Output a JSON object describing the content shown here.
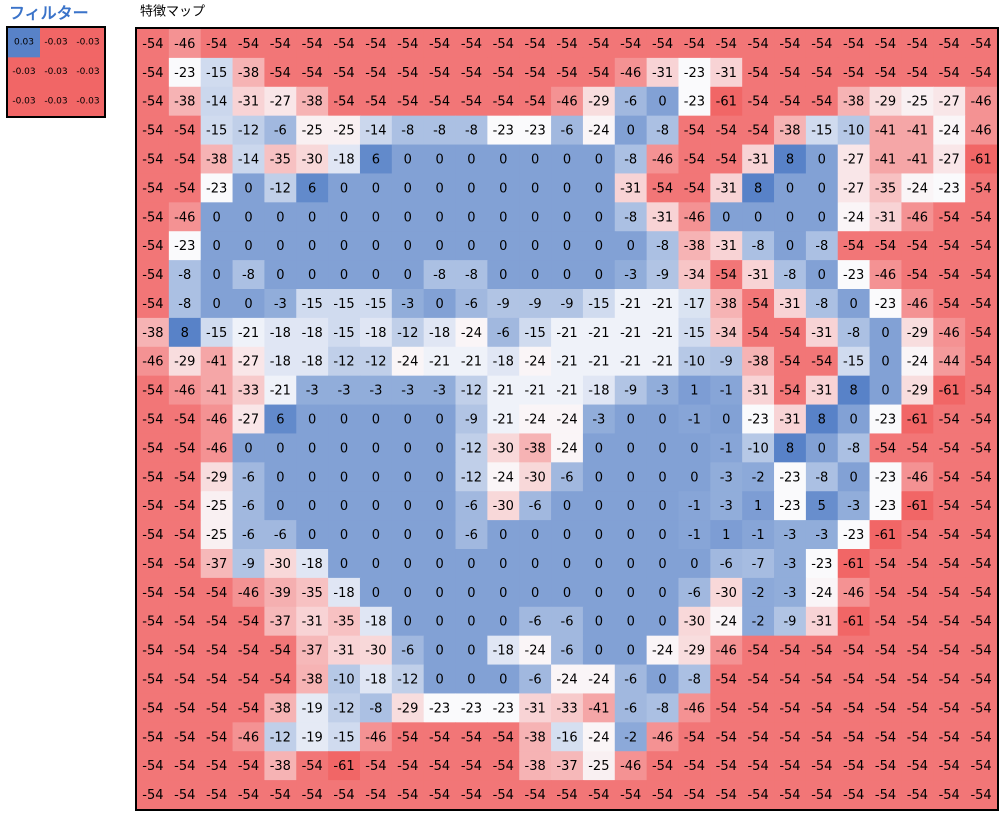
{
  "filter": {
    "title": "フィルター",
    "rows": [
      [
        0.03,
        -0.03,
        -0.03
      ],
      [
        -0.03,
        -0.03,
        -0.03
      ],
      [
        -0.03,
        -0.03,
        -0.03
      ]
    ]
  },
  "feature_map": {
    "title": "特徴マップ",
    "rows": [
      [
        -54,
        -46,
        -54,
        -54,
        -54,
        -54,
        -54,
        -54,
        -54,
        -54,
        -54,
        -54,
        -54,
        -54,
        -54,
        -54,
        -54,
        -54,
        -54,
        -54,
        -54,
        -54,
        -54,
        -54,
        -54,
        -54,
        -54
      ],
      [
        -54,
        -23,
        -15,
        -38,
        -54,
        -54,
        -54,
        -54,
        -54,
        -54,
        -54,
        -54,
        -54,
        -54,
        -54,
        -46,
        -31,
        -23,
        -31,
        -54,
        -54,
        -54,
        -54,
        -54,
        -54,
        -54,
        -54
      ],
      [
        -54,
        -38,
        -14,
        -31,
        -27,
        -38,
        -54,
        -54,
        -54,
        -54,
        -54,
        -54,
        -54,
        -46,
        -29,
        -6,
        0,
        -23,
        -61,
        -54,
        -54,
        -54,
        -38,
        -29,
        -25,
        -27,
        -46
      ],
      [
        -54,
        -54,
        -15,
        -12,
        -6,
        -25,
        -25,
        -14,
        -8,
        -8,
        -8,
        -23,
        -23,
        -6,
        -24,
        0,
        -8,
        -54,
        -54,
        -54,
        -38,
        -15,
        -10,
        -41,
        -41,
        -24,
        -46
      ],
      [
        -54,
        -54,
        -38,
        -14,
        -35,
        -30,
        -18,
        6,
        0,
        0,
        0,
        0,
        0,
        0,
        0,
        -8,
        -46,
        -54,
        -54,
        -31,
        8,
        0,
        -27,
        -41,
        -41,
        -27,
        -61
      ],
      [
        -54,
        -54,
        -23,
        0,
        -12,
        6,
        0,
        0,
        0,
        0,
        0,
        0,
        0,
        0,
        0,
        -31,
        -54,
        -54,
        -31,
        8,
        0,
        0,
        -27,
        -35,
        -24,
        -23,
        -54
      ],
      [
        -54,
        -46,
        0,
        0,
        0,
        0,
        0,
        0,
        0,
        0,
        0,
        0,
        0,
        0,
        0,
        -8,
        -31,
        -46,
        0,
        0,
        0,
        0,
        -24,
        -31,
        -46,
        -54,
        -54
      ],
      [
        -54,
        -23,
        0,
        0,
        0,
        0,
        0,
        0,
        0,
        0,
        0,
        0,
        0,
        0,
        0,
        0,
        -8,
        -38,
        -31,
        -8,
        0,
        -8,
        -54,
        -54,
        -54,
        -54,
        -54
      ],
      [
        -54,
        -8,
        0,
        -8,
        0,
        0,
        0,
        0,
        0,
        -8,
        -8,
        0,
        0,
        0,
        0,
        -3,
        -9,
        -34,
        -54,
        -31,
        -8,
        0,
        -23,
        -46,
        -54,
        -54,
        -54
      ],
      [
        -54,
        -8,
        0,
        0,
        -3,
        -15,
        -15,
        -15,
        -3,
        0,
        -6,
        -9,
        -9,
        -9,
        -15,
        -21,
        -21,
        -17,
        -38,
        -54,
        -31,
        -8,
        0,
        -23,
        -46,
        -54,
        -54
      ],
      [
        -38,
        8,
        -15,
        -21,
        -18,
        -18,
        -15,
        -18,
        -12,
        -18,
        -24,
        -6,
        -15,
        -21,
        -21,
        -21,
        -21,
        -15,
        -34,
        -54,
        -54,
        -31,
        -8,
        0,
        -29,
        -46,
        -54
      ],
      [
        -46,
        -29,
        -41,
        -27,
        -18,
        -18,
        -12,
        -12,
        -24,
        -21,
        -21,
        -18,
        -24,
        -21,
        -21,
        -21,
        -21,
        -10,
        -9,
        -38,
        -54,
        -54,
        -15,
        0,
        -24,
        -44,
        -54
      ],
      [
        -54,
        -46,
        -41,
        -33,
        -21,
        -3,
        -3,
        -3,
        -3,
        -3,
        -12,
        -21,
        -21,
        -21,
        -18,
        -9,
        -3,
        1,
        -1,
        -31,
        -54,
        -31,
        8,
        0,
        -29,
        -61,
        -54
      ],
      [
        -54,
        -54,
        -46,
        -27,
        6,
        0,
        0,
        0,
        0,
        0,
        -9,
        -21,
        -24,
        -24,
        -3,
        0,
        0,
        -1,
        0,
        -23,
        -31,
        8,
        0,
        -23,
        -61,
        -54,
        -54
      ],
      [
        -54,
        -54,
        -46,
        0,
        0,
        0,
        0,
        0,
        0,
        0,
        -12,
        -30,
        -38,
        -24,
        0,
        0,
        0,
        0,
        -1,
        -10,
        8,
        0,
        -8,
        -54,
        -54,
        -54,
        -54
      ],
      [
        -54,
        -54,
        -29,
        -6,
        0,
        0,
        0,
        0,
        0,
        0,
        -12,
        -24,
        -30,
        -6,
        0,
        0,
        0,
        0,
        -3,
        -2,
        -23,
        -8,
        0,
        -23,
        -46,
        -54,
        -54
      ],
      [
        -54,
        -54,
        -25,
        -6,
        0,
        0,
        0,
        0,
        0,
        0,
        -6,
        -30,
        -6,
        0,
        0,
        0,
        0,
        -1,
        -3,
        1,
        -23,
        5,
        -3,
        -23,
        -61,
        -54,
        -54
      ],
      [
        -54,
        -54,
        -25,
        -6,
        -6,
        0,
        0,
        0,
        0,
        0,
        -6,
        0,
        0,
        0,
        0,
        0,
        0,
        -1,
        1,
        -1,
        -3,
        -3,
        -23,
        -61,
        -54,
        -54,
        -54
      ],
      [
        -54,
        -54,
        -37,
        -9,
        -30,
        -18,
        0,
        0,
        0,
        0,
        0,
        0,
        0,
        0,
        0,
        0,
        0,
        0,
        -6,
        -7,
        -3,
        -23,
        -61,
        -54,
        -54,
        -54,
        -54
      ],
      [
        -54,
        -54,
        -54,
        -46,
        -39,
        -35,
        -18,
        0,
        0,
        0,
        0,
        0,
        0,
        0,
        0,
        0,
        0,
        -6,
        -30,
        -2,
        -3,
        -24,
        -46,
        -54,
        -54,
        -54,
        -54
      ],
      [
        -54,
        -54,
        -54,
        -54,
        -37,
        -31,
        -35,
        -18,
        0,
        0,
        0,
        0,
        -6,
        -6,
        0,
        0,
        0,
        -30,
        -24,
        -2,
        -9,
        -31,
        -61,
        -54,
        -54,
        -54,
        -54
      ],
      [
        -54,
        -54,
        -54,
        -54,
        -54,
        -37,
        -31,
        -30,
        -6,
        0,
        0,
        -18,
        -24,
        -6,
        0,
        0,
        -24,
        -29,
        -46,
        -54,
        -54,
        -54,
        -54,
        -54,
        -54,
        -54,
        -54
      ],
      [
        -54,
        -54,
        -54,
        -54,
        -54,
        -38,
        -10,
        -18,
        -12,
        0,
        0,
        0,
        -6,
        -24,
        -24,
        -6,
        0,
        -8,
        -54,
        -54,
        -54,
        -54,
        -54,
        -54,
        -54,
        -54,
        -54
      ],
      [
        -54,
        -54,
        -54,
        -54,
        -38,
        -19,
        -12,
        -8,
        -29,
        -23,
        -23,
        -23,
        -31,
        -33,
        -41,
        -6,
        -8,
        -46,
        -54,
        -54,
        -54,
        -54,
        -54,
        -54,
        -54,
        -54,
        -54
      ],
      [
        -54,
        -54,
        -54,
        -46,
        -12,
        -19,
        -15,
        -46,
        -54,
        -54,
        -54,
        -54,
        -38,
        -16,
        -24,
        -2,
        -46,
        -54,
        -54,
        -54,
        -54,
        -54,
        -54,
        -54,
        -54,
        -54,
        -54
      ],
      [
        -54,
        -54,
        -54,
        -54,
        -38,
        -54,
        -61,
        -54,
        -54,
        -54,
        -54,
        -54,
        -38,
        -37,
        -25,
        -46,
        -54,
        -54,
        -54,
        -54,
        -54,
        -54,
        -54,
        -54,
        -54,
        -54,
        -54
      ],
      [
        -54,
        -54,
        -54,
        -54,
        -54,
        -54,
        -54,
        -54,
        -54,
        -54,
        -54,
        -54,
        -54,
        -54,
        -54,
        -54,
        -54,
        -54,
        -54,
        -54,
        -54,
        -54,
        -54,
        -54,
        -54,
        -54,
        -54
      ]
    ]
  }
}
